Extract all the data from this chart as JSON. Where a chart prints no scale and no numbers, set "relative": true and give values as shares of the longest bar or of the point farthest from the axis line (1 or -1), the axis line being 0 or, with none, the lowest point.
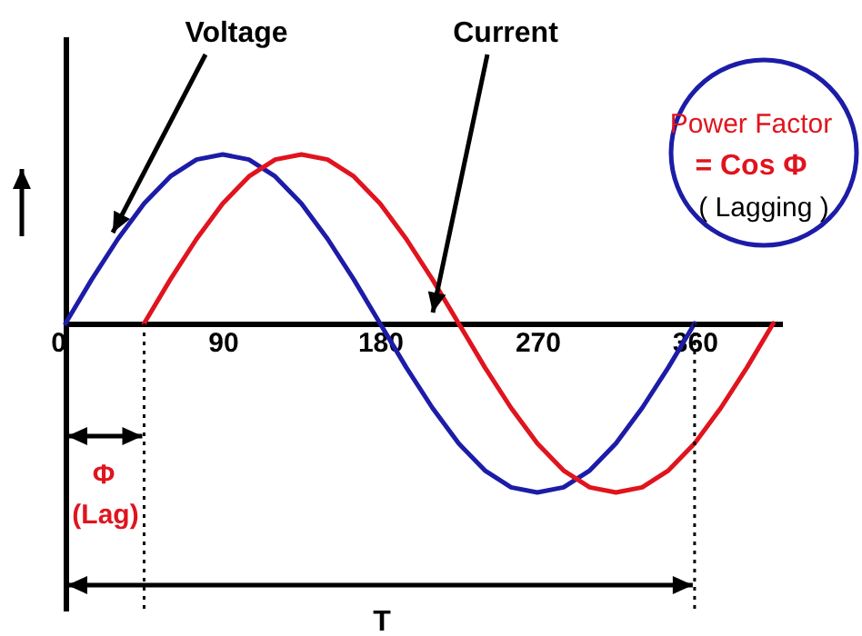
{
  "chart_data": {
    "type": "line",
    "relative": true,
    "xlim": [
      0,
      410
    ],
    "xticks": [
      0,
      90,
      180,
      270,
      360
    ],
    "line_style": "solid",
    "series": [
      {
        "name": "Voltage",
        "color": "#1c1ca8",
        "x": [
          0,
          15,
          30,
          45,
          60,
          75,
          90,
          105,
          120,
          135,
          150,
          165,
          180,
          195,
          210,
          225,
          240,
          255,
          270,
          285,
          300,
          315,
          330,
          345,
          360
        ],
        "values": [
          0,
          0.26,
          0.5,
          0.71,
          0.87,
          0.97,
          1,
          0.97,
          0.87,
          0.71,
          0.5,
          0.26,
          0,
          -0.26,
          -0.5,
          -0.71,
          -0.87,
          -0.97,
          -1,
          -0.97,
          -0.87,
          -0.71,
          -0.5,
          -0.26,
          0
        ]
      },
      {
        "name": "Current",
        "color": "#e0141e",
        "x": [
          45,
          60,
          75,
          90,
          105,
          120,
          135,
          150,
          165,
          180,
          195,
          210,
          225,
          240,
          255,
          270,
          285,
          300,
          315,
          330,
          345,
          360,
          375,
          390,
          405
        ],
        "values": [
          0,
          0.26,
          0.5,
          0.71,
          0.87,
          0.97,
          1,
          0.97,
          0.87,
          0.71,
          0.5,
          0.26,
          0,
          -0.26,
          -0.5,
          -0.71,
          -0.87,
          -0.97,
          -1,
          -0.97,
          -0.87,
          -0.71,
          -0.5,
          -0.26,
          0
        ]
      }
    ],
    "ref_lines": [
      {
        "axis": "x",
        "value": 45,
        "color": "#000000",
        "line_style": "dotted"
      },
      {
        "axis": "x",
        "value": 360,
        "color": "#000000",
        "line_style": "dotted"
      }
    ],
    "annotations": [
      "Power Factor",
      "= Cos Φ",
      "( Lagging )",
      "Φ",
      "(Lag)",
      "T"
    ]
  }
}
